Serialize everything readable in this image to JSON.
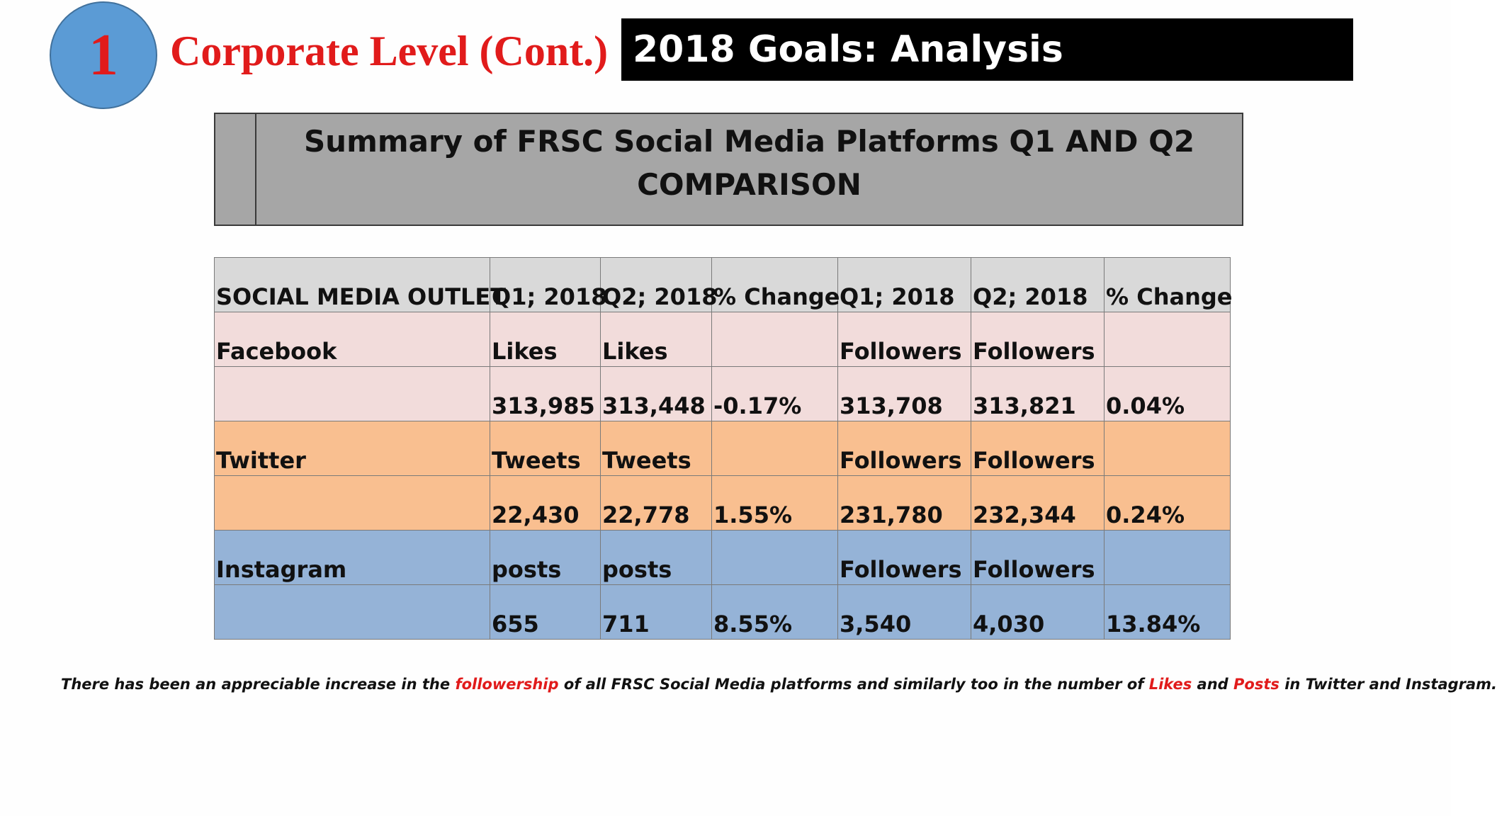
{
  "header": {
    "badge_number": "1",
    "section_title": "Corporate Level (Cont.)",
    "banner_title": "2018 Goals: Analysis"
  },
  "summary": {
    "line1": "Summary of FRSC Social Media Platforms Q1 AND Q2",
    "line2": "COMPARISON"
  },
  "table": {
    "columns": [
      "SOCIAL MEDIA OUTLET",
      "Q1; 2018",
      "Q2; 2018",
      "% Change",
      "Q1; 2018",
      "Q2; 2018",
      "% Change"
    ],
    "rows": [
      {
        "group": "facebook",
        "cells": [
          "Facebook",
          "Likes",
          "Likes",
          "",
          "Followers",
          "Followers",
          ""
        ]
      },
      {
        "group": "facebook",
        "cells": [
          "",
          "313,985",
          "313,448",
          "-0.17%",
          "313,708",
          "313,821",
          "0.04%"
        ]
      },
      {
        "group": "twitter",
        "cells": [
          "Twitter",
          "Tweets",
          "Tweets",
          "",
          "Followers",
          "Followers",
          ""
        ]
      },
      {
        "group": "twitter",
        "cells": [
          "",
          "22,430",
          "22,778",
          "1.55%",
          "231,780",
          "232,344",
          "0.24%"
        ]
      },
      {
        "group": "instagram",
        "cells": [
          "Instagram",
          "posts",
          "posts",
          "",
          "Followers",
          "Followers",
          ""
        ]
      },
      {
        "group": "instagram",
        "cells": [
          "",
          "655",
          "711",
          "8.55%",
          "3,540",
          "4,030",
          "13.84%"
        ]
      }
    ]
  },
  "footnote": {
    "part1": "There has been an appreciable increase in the ",
    "highlight1": "followership",
    "part2": " of all FRSC Social Media platforms and similarly too in the number of ",
    "highlight2": "Likes",
    "part3": " and ",
    "highlight3": "Posts",
    "part4": " in Twitter and Instagram."
  },
  "colors": {
    "accent_red": "#e11b1b",
    "badge_blue": "#5b9bd5",
    "header_row": "#d9d9d9",
    "facebook_row": "#f2dcdb",
    "twitter_row": "#f9bf90",
    "instagram_row": "#95b3d7",
    "summary_box": "#a6a6a6"
  }
}
